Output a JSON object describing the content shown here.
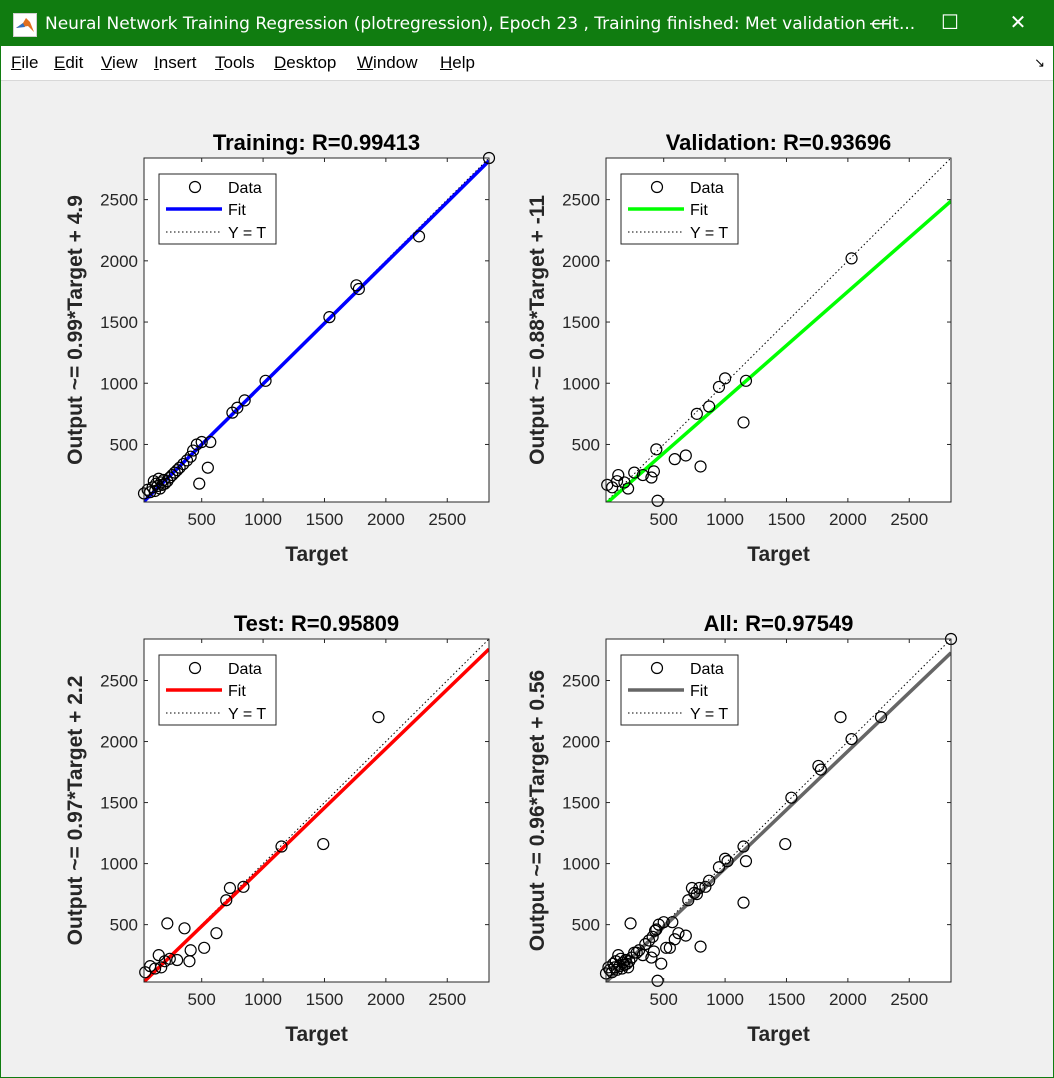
{
  "window": {
    "title": "Neural Network Training Regression (plotregression), Epoch 23 , Training finished: Met validation crit...",
    "minimize_glyph": "—",
    "maximize_glyph": "☐",
    "close_glyph": "✕"
  },
  "menu": [
    {
      "mn": "F",
      "rest": "ile"
    },
    {
      "mn": "E",
      "rest": "dit"
    },
    {
      "mn": "V",
      "rest": "iew"
    },
    {
      "mn": "I",
      "rest": "nsert"
    },
    {
      "mn": "T",
      "rest": "ools"
    },
    {
      "mn": "D",
      "rest": "esktop"
    },
    {
      "mn": "W",
      "rest": "indow"
    },
    {
      "mn": "H",
      "rest": "elp"
    }
  ],
  "dock_glyph": "↘",
  "chart_data": [
    {
      "type": "scatter",
      "title": "Training: R=0.99413",
      "xlabel": "Target",
      "ylabel": "Output ~= 0.99*Target + 4.9",
      "xlim": [
        30,
        2840
      ],
      "ylim": [
        30,
        2840
      ],
      "xticks": [
        500,
        1000,
        1500,
        2000,
        2500
      ],
      "yticks": [
        500,
        1000,
        1500,
        2000,
        2500
      ],
      "fit_color": "#0000ff",
      "fit": {
        "slope": 0.99,
        "intercept": 4.9
      },
      "legend": [
        "Data",
        "Fit",
        "Y = T"
      ],
      "points": [
        [
          30,
          100
        ],
        [
          60,
          130
        ],
        [
          80,
          110
        ],
        [
          100,
          150
        ],
        [
          110,
          200
        ],
        [
          120,
          120
        ],
        [
          130,
          180
        ],
        [
          140,
          160
        ],
        [
          150,
          220
        ],
        [
          160,
          140
        ],
        [
          170,
          190
        ],
        [
          180,
          170
        ],
        [
          190,
          210
        ],
        [
          200,
          180
        ],
        [
          220,
          200
        ],
        [
          240,
          230
        ],
        [
          260,
          250
        ],
        [
          280,
          270
        ],
        [
          300,
          290
        ],
        [
          320,
          310
        ],
        [
          350,
          340
        ],
        [
          380,
          370
        ],
        [
          410,
          400
        ],
        [
          430,
          450
        ],
        [
          460,
          500
        ],
        [
          480,
          180
        ],
        [
          500,
          520
        ],
        [
          550,
          310
        ],
        [
          570,
          520
        ],
        [
          750,
          760
        ],
        [
          790,
          800
        ],
        [
          850,
          860
        ],
        [
          1020,
          1020
        ],
        [
          1540,
          1540
        ],
        [
          1760,
          1800
        ],
        [
          1780,
          1770
        ],
        [
          2270,
          2200
        ],
        [
          2840,
          2840
        ]
      ]
    },
    {
      "type": "scatter",
      "title": "Validation: R=0.93696",
      "xlabel": "Target",
      "ylabel": "Output ~= 0.88*Target + -11",
      "xlim": [
        30,
        2840
      ],
      "ylim": [
        30,
        2840
      ],
      "xticks": [
        500,
        1000,
        1500,
        2000,
        2500
      ],
      "yticks": [
        500,
        1000,
        1500,
        2000,
        2500
      ],
      "fit_color": "#00ff00",
      "fit": {
        "slope": 0.88,
        "intercept": -11
      },
      "legend": [
        "Data",
        "Fit",
        "Y = T"
      ],
      "points": [
        [
          40,
          170
        ],
        [
          80,
          150
        ],
        [
          120,
          200
        ],
        [
          130,
          250
        ],
        [
          180,
          190
        ],
        [
          210,
          140
        ],
        [
          260,
          270
        ],
        [
          330,
          250
        ],
        [
          400,
          230
        ],
        [
          420,
          280
        ],
        [
          440,
          460
        ],
        [
          450,
          40
        ],
        [
          590,
          380
        ],
        [
          680,
          410
        ],
        [
          770,
          750
        ],
        [
          800,
          320
        ],
        [
          870,
          810
        ],
        [
          950,
          970
        ],
        [
          1000,
          1040
        ],
        [
          1150,
          680
        ],
        [
          1170,
          1020
        ],
        [
          2030,
          2020
        ]
      ]
    },
    {
      "type": "scatter",
      "title": "Test: R=0.95809",
      "xlabel": "Target",
      "ylabel": "Output ~= 0.97*Target + 2.2",
      "xlim": [
        30,
        2840
      ],
      "ylim": [
        30,
        2840
      ],
      "xticks": [
        500,
        1000,
        1500,
        2000,
        2500
      ],
      "yticks": [
        500,
        1000,
        1500,
        2000,
        2500
      ],
      "fit_color": "#ff0000",
      "fit": {
        "slope": 0.97,
        "intercept": 2.2
      },
      "legend": [
        "Data",
        "Fit",
        "Y = T"
      ],
      "points": [
        [
          40,
          110
        ],
        [
          80,
          160
        ],
        [
          120,
          140
        ],
        [
          150,
          250
        ],
        [
          170,
          150
        ],
        [
          200,
          200
        ],
        [
          220,
          510
        ],
        [
          240,
          220
        ],
        [
          300,
          210
        ],
        [
          360,
          470
        ],
        [
          400,
          200
        ],
        [
          410,
          290
        ],
        [
          520,
          310
        ],
        [
          620,
          430
        ],
        [
          700,
          700
        ],
        [
          730,
          800
        ],
        [
          840,
          810
        ],
        [
          1150,
          1140
        ],
        [
          1490,
          1160
        ],
        [
          1940,
          2200
        ]
      ]
    },
    {
      "type": "scatter",
      "title": "All: R=0.97549",
      "xlabel": "Target",
      "ylabel": "Output ~= 0.96*Target + 0.56",
      "xlim": [
        30,
        2840
      ],
      "ylim": [
        30,
        2840
      ],
      "xticks": [
        500,
        1000,
        1500,
        2000,
        2500
      ],
      "yticks": [
        500,
        1000,
        1500,
        2000,
        2500
      ],
      "fit_color": "#666666",
      "fit": {
        "slope": 0.96,
        "intercept": 0.56
      },
      "legend": [
        "Data",
        "Fit",
        "Y = T"
      ],
      "points": [
        [
          30,
          100
        ],
        [
          50,
          150
        ],
        [
          60,
          130
        ],
        [
          80,
          110
        ],
        [
          90,
          180
        ],
        [
          100,
          150
        ],
        [
          110,
          200
        ],
        [
          120,
          130
        ],
        [
          130,
          250
        ],
        [
          140,
          160
        ],
        [
          150,
          220
        ],
        [
          160,
          140
        ],
        [
          170,
          190
        ],
        [
          180,
          170
        ],
        [
          190,
          210
        ],
        [
          200,
          180
        ],
        [
          210,
          150
        ],
        [
          220,
          200
        ],
        [
          230,
          510
        ],
        [
          240,
          230
        ],
        [
          260,
          270
        ],
        [
          280,
          270
        ],
        [
          300,
          290
        ],
        [
          330,
          250
        ],
        [
          350,
          340
        ],
        [
          380,
          370
        ],
        [
          400,
          230
        ],
        [
          410,
          400
        ],
        [
          420,
          280
        ],
        [
          430,
          450
        ],
        [
          440,
          460
        ],
        [
          450,
          40
        ],
        [
          460,
          500
        ],
        [
          480,
          180
        ],
        [
          500,
          520
        ],
        [
          520,
          310
        ],
        [
          550,
          310
        ],
        [
          570,
          520
        ],
        [
          590,
          380
        ],
        [
          620,
          430
        ],
        [
          680,
          410
        ],
        [
          700,
          700
        ],
        [
          730,
          800
        ],
        [
          750,
          760
        ],
        [
          770,
          750
        ],
        [
          790,
          800
        ],
        [
          800,
          320
        ],
        [
          840,
          810
        ],
        [
          870,
          860
        ],
        [
          950,
          970
        ],
        [
          1000,
          1040
        ],
        [
          1020,
          1020
        ],
        [
          1150,
          680
        ],
        [
          1150,
          1140
        ],
        [
          1170,
          1020
        ],
        [
          1490,
          1160
        ],
        [
          1540,
          1540
        ],
        [
          1760,
          1800
        ],
        [
          1780,
          1770
        ],
        [
          1940,
          2200
        ],
        [
          2030,
          2020
        ],
        [
          2270,
          2200
        ],
        [
          2840,
          2840
        ]
      ]
    }
  ]
}
